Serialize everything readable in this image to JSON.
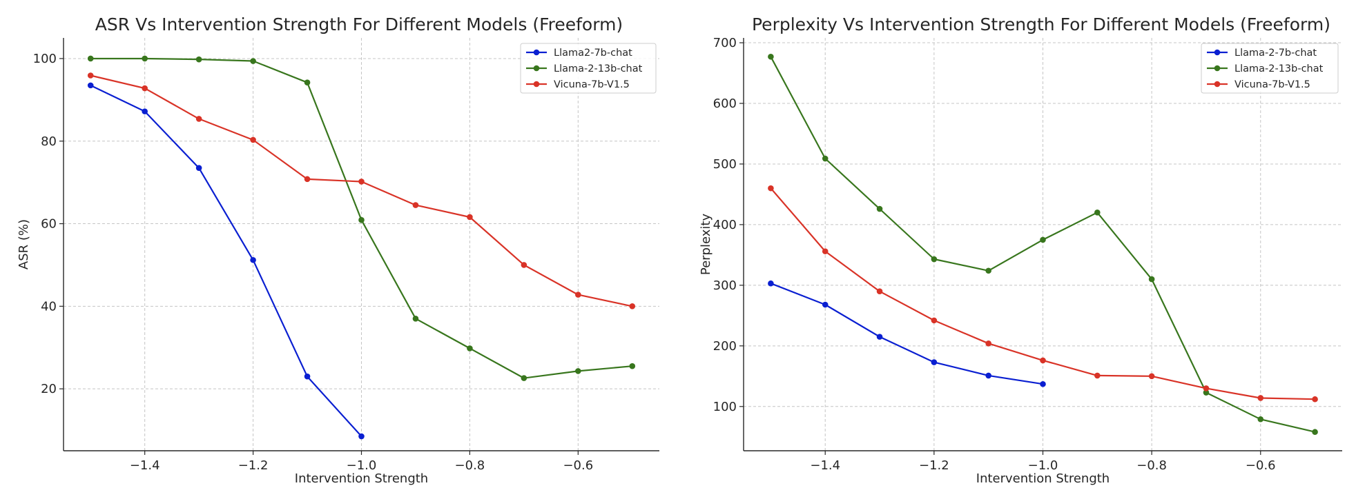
{
  "chart_data": [
    {
      "type": "line",
      "title": "ASR Vs Intervention Strength For Different Models (Freeform)",
      "xlabel": "Intervention Strength",
      "ylabel": "ASR (%)",
      "xlim": [
        -1.55,
        -0.45
      ],
      "ylim": [
        5,
        105
      ],
      "xticks": [
        -1.4,
        -1.2,
        -1.0,
        -0.8,
        -0.6
      ],
      "xtick_labels": [
        "−1.4",
        "−1.2",
        "−1.0",
        "−0.8",
        "−0.6"
      ],
      "yticks": [
        20,
        40,
        60,
        80,
        100
      ],
      "ytick_labels": [
        "20",
        "40",
        "60",
        "80",
        "100"
      ],
      "grid": true,
      "legend_position": "top-right",
      "series": [
        {
          "name": "Llama2-7b-chat",
          "color": "#0a1fd1",
          "x": [
            -1.5,
            -1.4,
            -1.3,
            -1.2,
            -1.1,
            -1.0
          ],
          "y": [
            93.5,
            87.2,
            73.5,
            51.2,
            23.0,
            8.5
          ]
        },
        {
          "name": "Llama-2-13b-chat",
          "color": "#38761d",
          "x": [
            -1.5,
            -1.4,
            -1.3,
            -1.2,
            -1.1,
            -1.0,
            -0.9,
            -0.8,
            -0.7,
            -0.6,
            -0.5
          ],
          "y": [
            100.0,
            100.0,
            99.8,
            99.4,
            94.2,
            60.9,
            37.0,
            29.8,
            22.6,
            24.3,
            25.5
          ]
        },
        {
          "name": "Vicuna-7b-V1.5",
          "color": "#d93327",
          "x": [
            -1.5,
            -1.4,
            -1.3,
            -1.2,
            -1.1,
            -1.0,
            -0.9,
            -0.8,
            -0.7,
            -0.6,
            -0.5
          ],
          "y": [
            95.9,
            92.8,
            85.4,
            80.3,
            70.8,
            70.2,
            64.5,
            61.6,
            50.0,
            42.8,
            40.0
          ]
        }
      ]
    },
    {
      "type": "line",
      "title": "Perplexity Vs Intervention Strength For Different Models (Freeform)",
      "xlabel": "Intervention Strength",
      "ylabel": "Perplexity",
      "xlim": [
        -1.55,
        -0.45
      ],
      "ylim": [
        27,
        708
      ],
      "xticks": [
        -1.4,
        -1.2,
        -1.0,
        -0.8,
        -0.6
      ],
      "xtick_labels": [
        "−1.4",
        "−1.2",
        "−1.0",
        "−0.8",
        "−0.6"
      ],
      "yticks": [
        100,
        200,
        300,
        400,
        500,
        600,
        700
      ],
      "ytick_labels": [
        "100",
        "200",
        "300",
        "400",
        "500",
        "600",
        "700"
      ],
      "grid": true,
      "legend_position": "top-right",
      "series": [
        {
          "name": "Llama-2-7b-chat",
          "color": "#0a1fd1",
          "x": [
            -1.5,
            -1.4,
            -1.3,
            -1.2,
            -1.1,
            -1.0
          ],
          "y": [
            303,
            268,
            215,
            173,
            151,
            137
          ]
        },
        {
          "name": "Llama-2-13b-chat",
          "color": "#38761d",
          "x": [
            -1.5,
            -1.4,
            -1.3,
            -1.2,
            -1.1,
            -1.0,
            -0.9,
            -0.8,
            -0.7,
            -0.6,
            -0.5
          ],
          "y": [
            677,
            509,
            426,
            343,
            324,
            375,
            420,
            310,
            123,
            79,
            58
          ]
        },
        {
          "name": "Vicuna-7b-V1.5",
          "color": "#d93327",
          "x": [
            -1.5,
            -1.4,
            -1.3,
            -1.2,
            -1.1,
            -1.0,
            -0.9,
            -0.8,
            -0.7,
            -0.6,
            -0.5
          ],
          "y": [
            460,
            356,
            290,
            242,
            204,
            176,
            151,
            150,
            130,
            114,
            112
          ]
        }
      ]
    }
  ]
}
